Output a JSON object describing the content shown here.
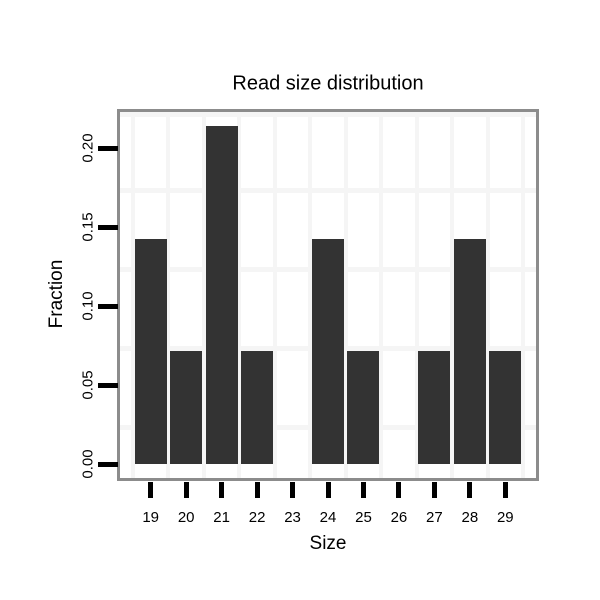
{
  "chart_data": {
    "type": "bar",
    "title": "Read size distribution",
    "xlabel": "Size",
    "ylabel": "Fraction",
    "categories": [
      "19",
      "20",
      "21",
      "22",
      "23",
      "24",
      "25",
      "26",
      "27",
      "28",
      "29"
    ],
    "values": [
      0.1429,
      0.0714,
      0.2143,
      0.0714,
      0,
      0.1429,
      0.0714,
      0,
      0.0714,
      0.1429,
      0.0714
    ],
    "y_ticks": [
      0.0,
      0.05,
      0.1,
      0.15,
      0.2
    ],
    "y_tick_labels": [
      "0.00",
      "0.05",
      "0.10",
      "0.15",
      "0.20"
    ],
    "ylim": [
      0,
      0.2255
    ],
    "grid": "minor-gridlines-only",
    "legend_position": "none",
    "colors": {
      "bar_fill": "#333333",
      "panel_border": "#8c8c8c",
      "gridline": "#f5f5f5",
      "text": "#000000",
      "background": "#ffffff"
    }
  }
}
